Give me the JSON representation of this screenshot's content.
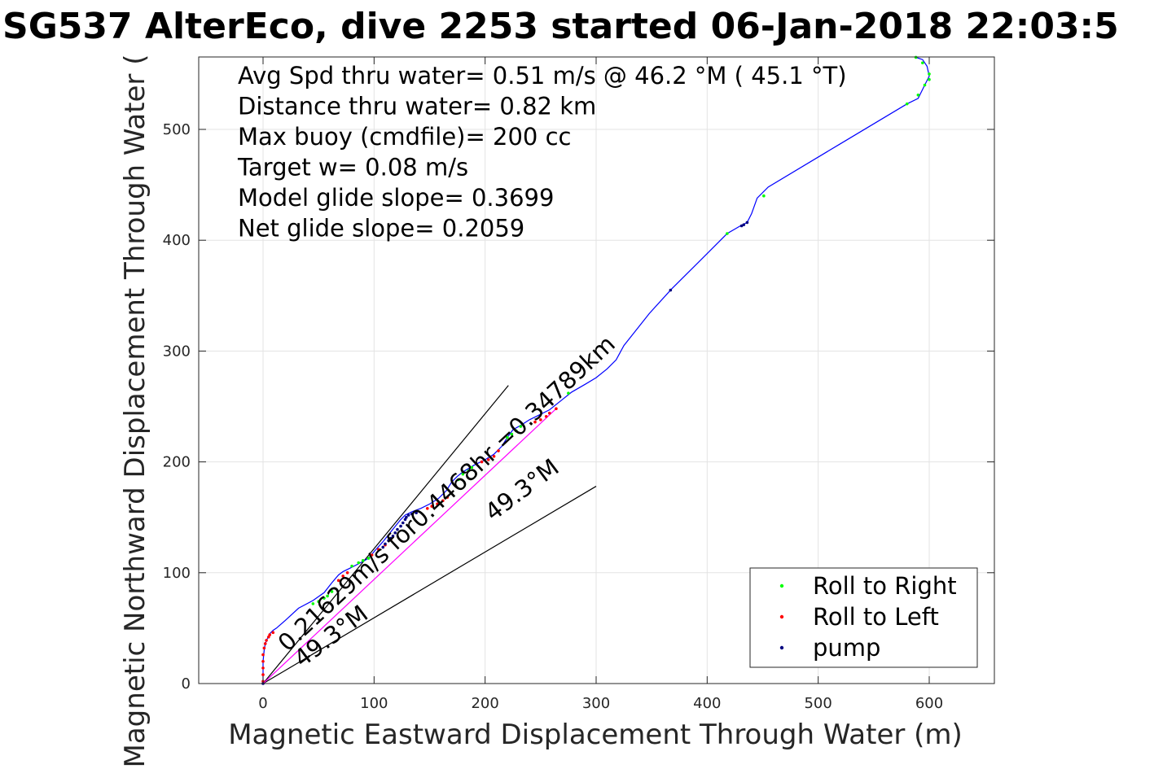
{
  "chart_data": {
    "type": "line",
    "title": "SG537 AlterEco, dive 2253 started 06-Jan-2018 22:03:5",
    "xlabel": "Magnetic Eastward Displacement Through Water (m)",
    "ylabel": "Magnetic Northward Displacement Through Water (",
    "xlim": [
      -58,
      600
    ],
    "ylim": [
      0,
      565
    ],
    "xticks": [
      0,
      100,
      200,
      300,
      400,
      500,
      600
    ],
    "yticks": [
      0,
      100,
      200,
      300,
      400,
      500
    ],
    "grid": true,
    "info_lines": [
      "Avg Spd thru water=  0.51 m/s @  46.2 °M ( 45.1 °T)",
      "Distance thru water=  0.82 km",
      "Max buoy (cmdfile)= 200 cc",
      "Target w= 0.08 m/s",
      "Model glide slope= 0.3699",
      "Net glide slope= 0.2059"
    ],
    "track": {
      "color": "#0000ff",
      "x": [
        0,
        0,
        0,
        1,
        2,
        4,
        6,
        9,
        12,
        20,
        32,
        45,
        55,
        62,
        68,
        72,
        78,
        86,
        95,
        100,
        108,
        116,
        124,
        128,
        134,
        142,
        150,
        158,
        165,
        170,
        175,
        180,
        190,
        200,
        208,
        215,
        220,
        225,
        232,
        240,
        248,
        258,
        268,
        278,
        290,
        300,
        310,
        318,
        325,
        348,
        368,
        395,
        418,
        430,
        436,
        440,
        445,
        455,
        520,
        580,
        590,
        596,
        600,
        598,
        594,
        588
      ],
      "y": [
        0,
        10,
        20,
        30,
        36,
        41,
        45,
        48,
        50,
        57,
        68,
        75,
        82,
        91,
        98,
        101,
        104,
        108,
        113,
        119,
        128,
        138,
        148,
        152,
        155,
        158,
        162,
        167,
        174,
        182,
        187,
        191,
        197,
        202,
        207,
        214,
        222,
        229,
        233,
        238,
        242,
        247,
        255,
        263,
        270,
        276,
        284,
        292,
        305,
        334,
        356,
        383,
        406,
        413,
        416,
        424,
        438,
        448,
        487,
        523,
        528,
        540,
        548,
        557,
        563,
        565
      ]
    },
    "roll_right_points": {
      "x": [
        45,
        50,
        55,
        58,
        62,
        80,
        86,
        90,
        95,
        176,
        180,
        185,
        188,
        220,
        224,
        228,
        232,
        275,
        418,
        451,
        580,
        590,
        596,
        600,
        600,
        594,
        588
      ],
      "y": [
        72,
        74,
        77,
        79,
        83,
        106,
        109,
        111,
        113,
        184,
        189,
        192,
        195,
        222,
        225,
        228,
        232,
        262,
        406,
        440,
        523,
        531,
        540,
        545,
        550,
        560,
        565
      ],
      "color": "#00ff00"
    },
    "roll_left_points": {
      "x": [
        0,
        0,
        0,
        0,
        0,
        1,
        2,
        3,
        5,
        6,
        9,
        68,
        72,
        76,
        98,
        104,
        110,
        115,
        148,
        152,
        157,
        162,
        166,
        197,
        203,
        208,
        212,
        245,
        250,
        255,
        258,
        264
      ],
      "y": [
        2,
        8,
        14,
        20,
        26,
        32,
        36,
        39,
        42,
        44,
        46,
        93,
        97,
        100,
        116,
        121,
        125,
        130,
        158,
        160,
        162,
        165,
        168,
        200,
        202,
        205,
        210,
        236,
        238,
        241,
        244,
        248
      ],
      "color": "#ff0000"
    },
    "pump_points": {
      "x": [
        0,
        108,
        110,
        113,
        115,
        117,
        119,
        121,
        124,
        126,
        128,
        129,
        131,
        134,
        138,
        367,
        431,
        433,
        436
      ],
      "y": [
        0,
        123,
        126,
        129,
        131,
        133,
        136,
        139,
        142,
        145,
        148,
        150,
        152,
        153,
        154,
        355,
        413,
        414,
        416
      ],
      "color": "#000080"
    },
    "net_line": {
      "x": [
        0,
        264
      ],
      "y": [
        0,
        248
      ],
      "color": "#ff00ff"
    },
    "wedge_lines": [
      {
        "x": [
          0,
          221
        ],
        "y": [
          0,
          269
        ],
        "color": "#000000"
      },
      {
        "x": [
          0,
          300
        ],
        "y": [
          0,
          178
        ],
        "color": "#000000"
      }
    ],
    "annotations": [
      {
        "text": "0.21629m/s for0.4468hr =0.34789km",
        "x": 22,
        "y": 28,
        "angle": -43
      },
      {
        "text": "49.3°M",
        "x": 35,
        "y": 14,
        "angle": -37
      },
      {
        "text": "49.3°M",
        "x": 207,
        "y": 146,
        "angle": -37
      }
    ],
    "legend": {
      "position": "bottom-right",
      "items": [
        {
          "label": "Roll to Right",
          "color": "#00ff00"
        },
        {
          "label": "Roll to Left",
          "color": "#ff0000"
        },
        {
          "label": "pump",
          "color": "#000080"
        }
      ]
    }
  }
}
